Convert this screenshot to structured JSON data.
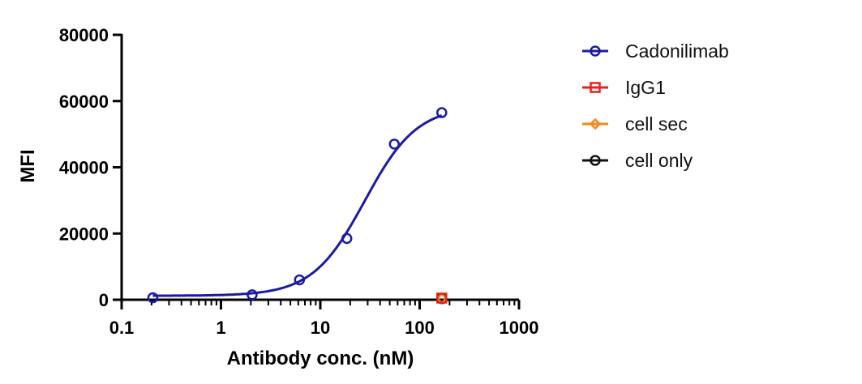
{
  "chart_data": {
    "type": "scatter",
    "xlabel": "Antibody conc. (nM)",
    "ylabel": "MFI",
    "xscale": "log",
    "xlim": [
      0.1,
      1000
    ],
    "ylim": [
      0,
      80000
    ],
    "x_ticks": [
      "0.1",
      "1",
      "10",
      "100",
      "1000"
    ],
    "y_ticks": [
      "0",
      "20000",
      "40000",
      "60000",
      "80000"
    ],
    "grid": false,
    "legend_position": "right",
    "series": [
      {
        "name": "Cadonilimab",
        "color": "#1a1aa6",
        "marker": "circle",
        "fit_curve": true,
        "x": [
          0.206,
          2.06,
          6.17,
          18.5,
          55.6,
          167
        ],
        "y": [
          600,
          1500,
          6000,
          18500,
          47000,
          56500
        ]
      },
      {
        "name": "IgG1",
        "color": "#e8201a",
        "marker": "square",
        "x": [
          167
        ],
        "y": [
          500
        ]
      },
      {
        "name": "cell sec",
        "color": "#f28a1c",
        "marker": "diamond",
        "x": [
          167
        ],
        "y": [
          400
        ]
      },
      {
        "name": "cell only",
        "color": "#111111",
        "marker": "circle",
        "x": [
          167
        ],
        "y": [
          300
        ]
      }
    ]
  }
}
